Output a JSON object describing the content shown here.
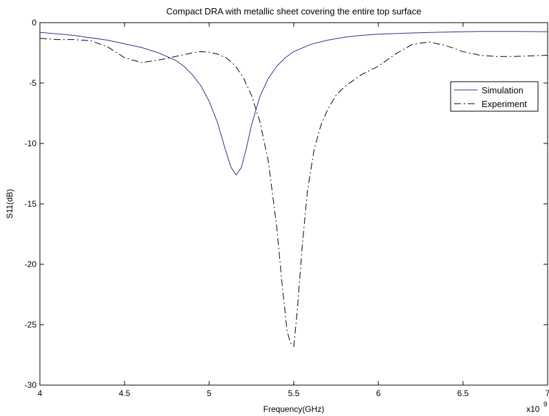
{
  "chart_data": {
    "type": "line",
    "title": "Compact DRA with metallic sheet covering the entire top surface",
    "xlabel": "Frequency(GHz)",
    "ylabel": "S11(dB)",
    "x_exponent_label": "x10",
    "x_exponent_power": "9",
    "xlim": [
      4.0,
      7.0
    ],
    "ylim": [
      -30,
      0
    ],
    "x_ticks": [
      4,
      4.5,
      5,
      5.5,
      6,
      6.5,
      7
    ],
    "x_tick_labels": [
      "4",
      "4.5",
      "5",
      "5.5",
      "6",
      "6.5",
      "7"
    ],
    "y_ticks": [
      0,
      -5,
      -10,
      -15,
      -20,
      -25,
      -30
    ],
    "y_tick_labels": [
      "0",
      "-5",
      "-10",
      "-15",
      "-20",
      "-25",
      "-30"
    ],
    "grid": false,
    "legend_position": "top-right",
    "series": [
      {
        "name": "Simulation",
        "color": "#2e2e8c",
        "style": "solid",
        "x": [
          4.0,
          4.2,
          4.4,
          4.6,
          4.7,
          4.8,
          4.85,
          4.9,
          4.95,
          5.0,
          5.05,
          5.1,
          5.13,
          5.16,
          5.19,
          5.22,
          5.25,
          5.3,
          5.35,
          5.4,
          5.45,
          5.5,
          5.6,
          5.7,
          5.8,
          5.9,
          6.0,
          6.2,
          6.4,
          6.6,
          6.8,
          7.0
        ],
        "y": [
          -0.8,
          -1.05,
          -1.45,
          -2.05,
          -2.5,
          -3.1,
          -3.6,
          -4.3,
          -5.2,
          -6.5,
          -8.3,
          -10.7,
          -12.0,
          -12.6,
          -12.0,
          -10.4,
          -8.5,
          -6.1,
          -4.6,
          -3.6,
          -2.9,
          -2.4,
          -1.8,
          -1.45,
          -1.2,
          -1.05,
          -0.95,
          -0.85,
          -0.78,
          -0.73,
          -0.72,
          -0.75
        ]
      },
      {
        "name": "Experiment",
        "color": "#000000",
        "style": "dashdot",
        "x": [
          4.0,
          4.1,
          4.2,
          4.3,
          4.4,
          4.5,
          4.6,
          4.7,
          4.8,
          4.9,
          4.95,
          5.0,
          5.05,
          5.1,
          5.15,
          5.2,
          5.25,
          5.3,
          5.35,
          5.4,
          5.43,
          5.46,
          5.48,
          5.5,
          5.52,
          5.55,
          5.58,
          5.62,
          5.66,
          5.7,
          5.75,
          5.8,
          5.9,
          6.0,
          6.1,
          6.2,
          6.3,
          6.4,
          6.5,
          6.6,
          6.7,
          6.8,
          6.9,
          7.0
        ],
        "y": [
          -1.3,
          -1.4,
          -1.4,
          -1.5,
          -2.0,
          -2.9,
          -3.3,
          -3.1,
          -2.8,
          -2.5,
          -2.4,
          -2.45,
          -2.6,
          -2.9,
          -3.5,
          -4.5,
          -6.0,
          -8.2,
          -11.5,
          -17.0,
          -21.5,
          -25.5,
          -26.5,
          -26.8,
          -24.0,
          -18.5,
          -14.0,
          -10.5,
          -8.5,
          -7.2,
          -6.0,
          -5.3,
          -4.3,
          -3.6,
          -2.6,
          -1.8,
          -1.6,
          -1.9,
          -2.4,
          -2.7,
          -2.8,
          -2.8,
          -2.75,
          -2.7
        ]
      }
    ]
  }
}
